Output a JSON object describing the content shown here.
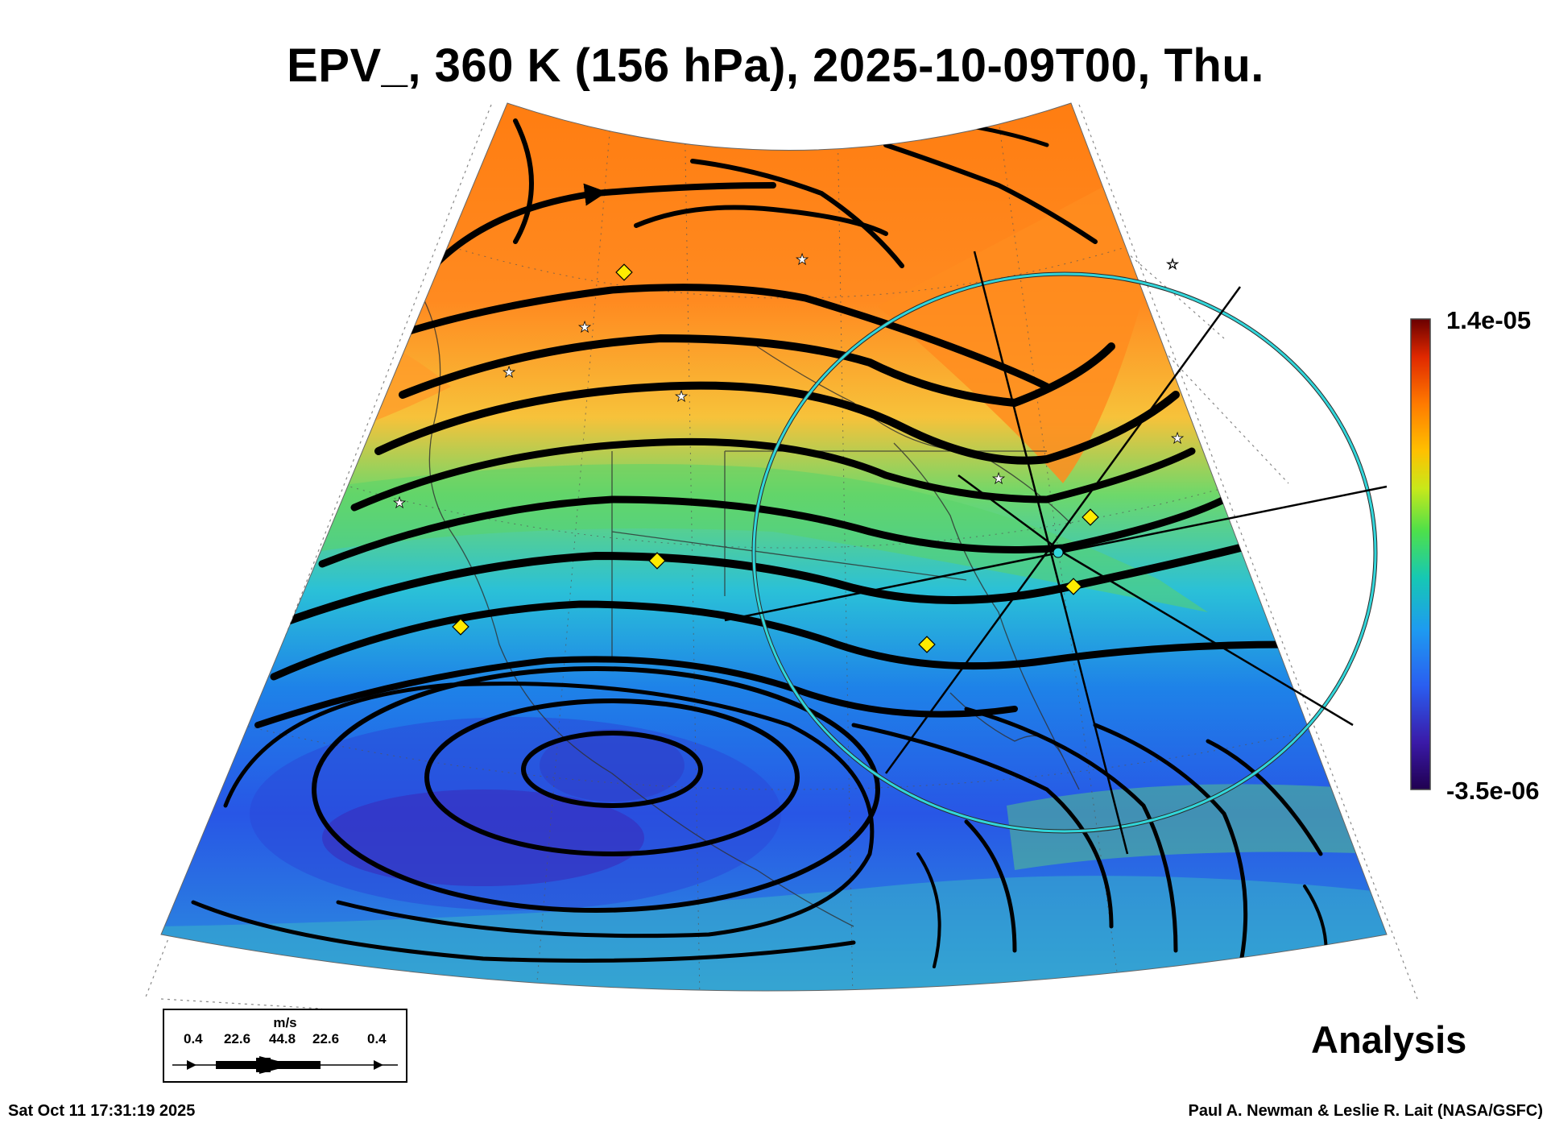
{
  "title": "EPV_, 360 K (156 hPa), 2025-10-09T00, Thu.",
  "colorbar": {
    "max_label": "1.4e-05",
    "min_label": "-3.5e-06",
    "colors": [
      "#200050",
      "#3a1aa8",
      "#2a5ef0",
      "#1e9bf0",
      "#16c8b4",
      "#4ee04a",
      "#c8e81a",
      "#ffc000",
      "#ff7a00",
      "#e02800",
      "#6a0000"
    ]
  },
  "wind_legend": {
    "unit": "m/s",
    "ticks": [
      "0.4",
      "22.6",
      "44.8",
      "22.6",
      "0.4"
    ]
  },
  "stamp": "Analysis",
  "timestamp": "Sat Oct 11 17:31:19 2025",
  "credit": "Paul A. Newman & Leslie R. Lait (NASA/GSFC)"
}
